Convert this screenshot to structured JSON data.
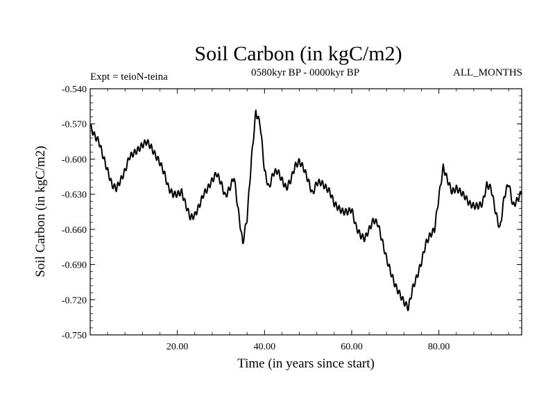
{
  "chart_data": {
    "type": "line",
    "title": "Soil Carbon (in kgC/m2)",
    "left_label": "Expt = teioN-teina",
    "center_label": "0580kyr BP - 0000kyr BP",
    "right_label": "ALL_MONTHS",
    "xlabel": "Time (in years since start)",
    "ylabel": "Soil Carbon (in kgC/m2)",
    "xlim": [
      0,
      99
    ],
    "ylim": [
      -0.75,
      -0.54
    ],
    "x_ticks": [
      20,
      40,
      60,
      80
    ],
    "x_tick_labels": [
      "20.00",
      "40.00",
      "60.00",
      "80.00"
    ],
    "y_ticks": [
      -0.54,
      -0.57,
      -0.6,
      -0.63,
      -0.66,
      -0.69,
      -0.72,
      -0.75
    ],
    "y_tick_labels": [
      "-0.540",
      "-0.570",
      "-0.600",
      "-0.630",
      "-0.660",
      "-0.690",
      "-0.720",
      "-0.750"
    ],
    "series": [
      {
        "name": "teioN-teina",
        "x": [
          0,
          1,
          2,
          3,
          4,
          5,
          6,
          7,
          8,
          9,
          10,
          11,
          12,
          13,
          14,
          15,
          16,
          17,
          18,
          19,
          20,
          21,
          22,
          23,
          24,
          25,
          26,
          27,
          28,
          29,
          30,
          31,
          32,
          33,
          34,
          35,
          36,
          37,
          38,
          39,
          40,
          41,
          42,
          43,
          44,
          45,
          46,
          47,
          48,
          49,
          50,
          51,
          52,
          53,
          54,
          55,
          56,
          57,
          58,
          59,
          60,
          61,
          62,
          63,
          64,
          65,
          66,
          67,
          68,
          69,
          70,
          71,
          72,
          73,
          74,
          75,
          76,
          77,
          78,
          79,
          80,
          81,
          82,
          83,
          84,
          85,
          86,
          87,
          88,
          89,
          90,
          91,
          92,
          93,
          94,
          95,
          96,
          97,
          98,
          99
        ],
        "values": [
          -0.572,
          -0.58,
          -0.585,
          -0.598,
          -0.61,
          -0.622,
          -0.625,
          -0.618,
          -0.61,
          -0.598,
          -0.595,
          -0.592,
          -0.588,
          -0.585,
          -0.59,
          -0.597,
          -0.603,
          -0.612,
          -0.625,
          -0.63,
          -0.63,
          -0.628,
          -0.64,
          -0.65,
          -0.648,
          -0.64,
          -0.63,
          -0.625,
          -0.618,
          -0.612,
          -0.62,
          -0.632,
          -0.625,
          -0.615,
          -0.645,
          -0.672,
          -0.65,
          -0.6,
          -0.56,
          -0.57,
          -0.61,
          -0.625,
          -0.612,
          -0.61,
          -0.618,
          -0.625,
          -0.618,
          -0.606,
          -0.602,
          -0.608,
          -0.618,
          -0.63,
          -0.62,
          -0.62,
          -0.624,
          -0.628,
          -0.638,
          -0.642,
          -0.645,
          -0.645,
          -0.643,
          -0.658,
          -0.665,
          -0.668,
          -0.66,
          -0.652,
          -0.655,
          -0.67,
          -0.685,
          -0.697,
          -0.708,
          -0.715,
          -0.722,
          -0.727,
          -0.71,
          -0.7,
          -0.688,
          -0.672,
          -0.665,
          -0.66,
          -0.632,
          -0.607,
          -0.618,
          -0.628,
          -0.625,
          -0.628,
          -0.632,
          -0.638,
          -0.64,
          -0.64,
          -0.638,
          -0.622,
          -0.625,
          -0.645,
          -0.66,
          -0.632,
          -0.62,
          -0.64,
          -0.635,
          -0.628
        ]
      }
    ]
  }
}
